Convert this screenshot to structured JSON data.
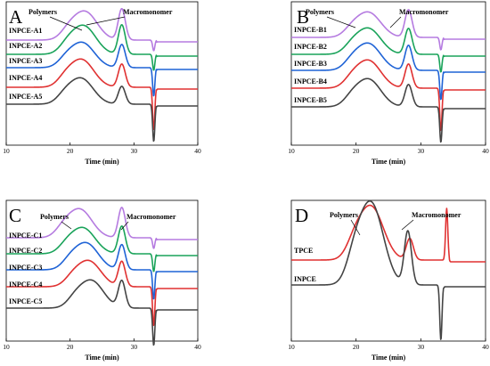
{
  "chart_data": [
    {
      "type": "line",
      "panel": "A",
      "xlabel": "Time (min)",
      "xlim": [
        10,
        40
      ],
      "xticks": [
        10,
        20,
        30,
        40
      ],
      "annotations": [
        "Polymers",
        "Macromonomer"
      ],
      "series": [
        {
          "name": "INPCE-A1",
          "color": "#b57be0",
          "peaks": {
            "polymer_min": 22.3,
            "macromonomer_min": 28.1,
            "dip_min": 33.1
          }
        },
        {
          "name": "INPCE-A2",
          "color": "#1aa35a",
          "peaks": {
            "polymer_min": 22.1,
            "macromonomer_min": 28.1,
            "dip_min": 33.1
          }
        },
        {
          "name": "INPCE-A3",
          "color": "#1f63d6",
          "peaks": {
            "polymer_min": 21.9,
            "macromonomer_min": 28.1,
            "dip_min": 33.1
          }
        },
        {
          "name": "INPCE-A4",
          "color": "#e03131",
          "peaks": {
            "polymer_min": 21.8,
            "macromonomer_min": 28.1,
            "dip_min": 33.1
          }
        },
        {
          "name": "INPCE-A5",
          "color": "#444444",
          "peaks": {
            "polymer_min": 21.7,
            "macromonomer_min": 28.1,
            "dip_min": 33.1
          }
        }
      ]
    },
    {
      "type": "line",
      "panel": "B",
      "xlabel": "Time (min)",
      "xlim": [
        10,
        40
      ],
      "xticks": [
        10,
        20,
        30,
        40
      ],
      "annotations": [
        "Polymers",
        "Macromonomer"
      ],
      "series": [
        {
          "name": "INPCE-B1",
          "color": "#b57be0",
          "peaks": {
            "polymer_min": 21.9,
            "macromonomer_min": 28.1,
            "dip_min": 33.1
          }
        },
        {
          "name": "INPCE-B2",
          "color": "#1aa35a",
          "peaks": {
            "polymer_min": 21.9,
            "macromonomer_min": 28.1,
            "dip_min": 33.1
          }
        },
        {
          "name": "INPCE-B3",
          "color": "#1f63d6",
          "peaks": {
            "polymer_min": 21.9,
            "macromonomer_min": 28.1,
            "dip_min": 33.1
          }
        },
        {
          "name": "INPCE-B4",
          "color": "#e03131",
          "peaks": {
            "polymer_min": 21.9,
            "macromonomer_min": 28.1,
            "dip_min": 33.1
          }
        },
        {
          "name": "INPCE-B5",
          "color": "#444444",
          "peaks": {
            "polymer_min": 21.9,
            "macromonomer_min": 28.1,
            "dip_min": 33.1
          }
        }
      ]
    },
    {
      "type": "line",
      "panel": "C",
      "xlabel": "Time (min)",
      "xlim": [
        10,
        40
      ],
      "xticks": [
        10,
        20,
        30,
        40
      ],
      "annotations": [
        "Polymers",
        "Macromonomer"
      ],
      "series": [
        {
          "name": "INPCE-C1",
          "color": "#b57be0",
          "peaks": {
            "polymer_min": 21.5,
            "macromonomer_min": 28.1,
            "dip_min": 33.1
          }
        },
        {
          "name": "INPCE-C2",
          "color": "#1aa35a",
          "peaks": {
            "polymer_min": 22.0,
            "macromonomer_min": 28.1,
            "dip_min": 33.1
          }
        },
        {
          "name": "INPCE-C3",
          "color": "#1f63d6",
          "peaks": {
            "polymer_min": 22.5,
            "macromonomer_min": 28.1,
            "dip_min": 33.1
          }
        },
        {
          "name": "INPCE-C4",
          "color": "#e03131",
          "peaks": {
            "polymer_min": 22.9,
            "macromonomer_min": 28.1,
            "dip_min": 33.1
          }
        },
        {
          "name": "INPCE-C5",
          "color": "#444444",
          "peaks": {
            "polymer_min": 23.3,
            "macromonomer_min": 28.1,
            "dip_min": 33.1
          }
        }
      ]
    },
    {
      "type": "line",
      "panel": "D",
      "xlabel": "Time (min)",
      "xlim": [
        10,
        40
      ],
      "xticks": [
        10,
        20,
        30,
        40
      ],
      "annotations": [
        "Polymers",
        "Macromonomer"
      ],
      "series": [
        {
          "name": "TPCE",
          "color": "#e03131",
          "peaks": {
            "polymer_min": 22.3,
            "macromonomer_min": 28.3,
            "dip_min": 34.0
          }
        },
        {
          "name": "INPCE",
          "color": "#444444",
          "peaks": {
            "polymer_min": 22.3,
            "macromonomer_min": 28.0,
            "dip_min": 33.1
          }
        }
      ]
    }
  ]
}
